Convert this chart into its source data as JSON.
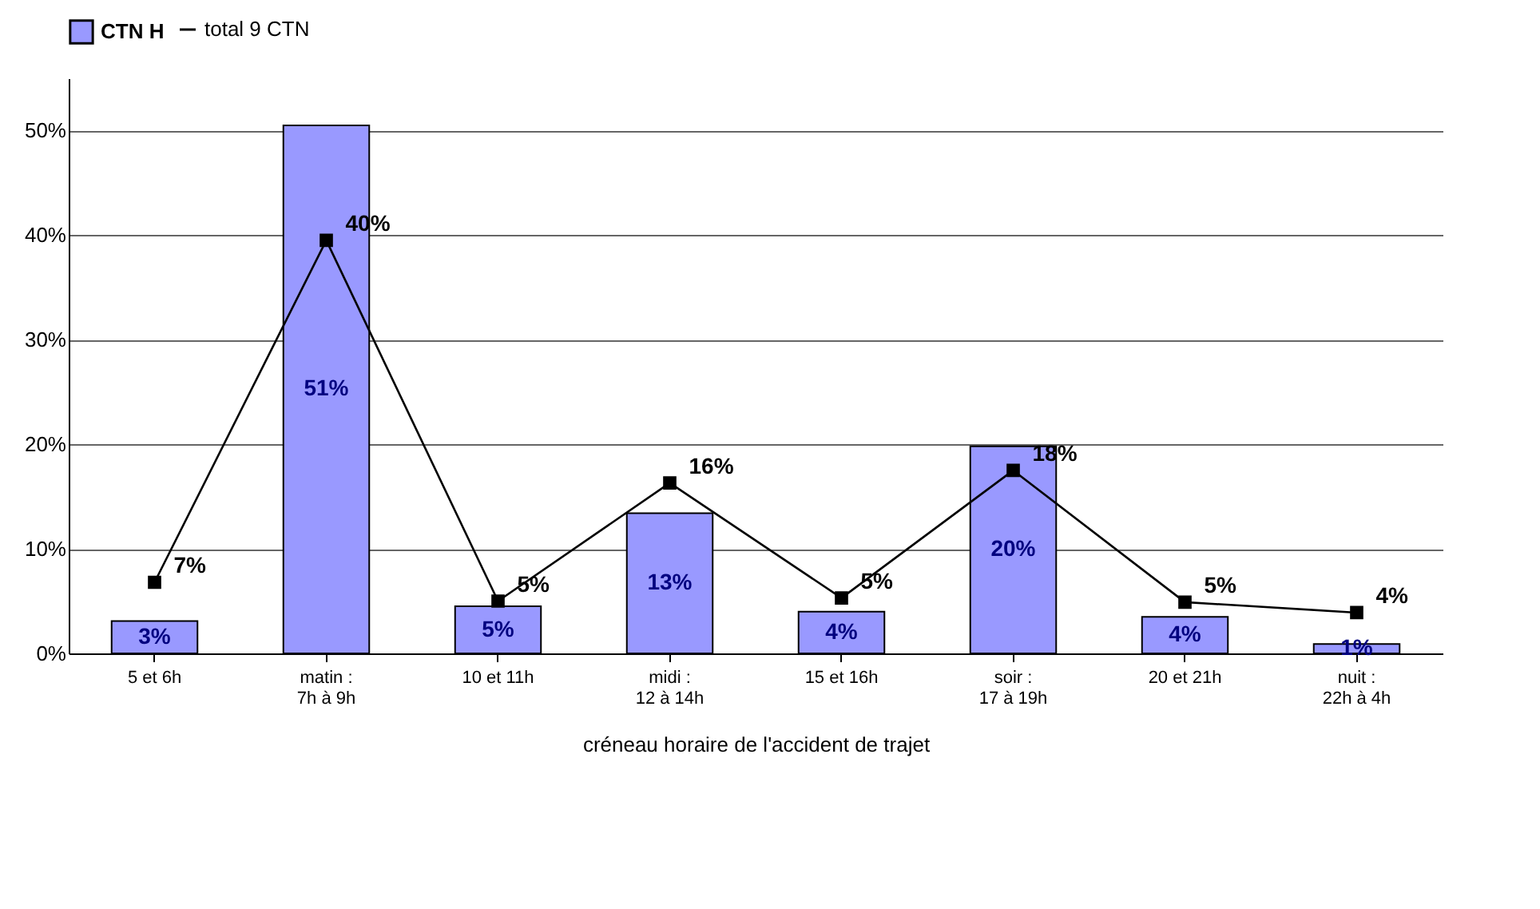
{
  "chart_data": {
    "type": "bar",
    "xlabel": "créneau horaire de l'accident de trajet",
    "categories": [
      "5 et 6h",
      "matin :\n7h à 9h",
      "10 et 11h",
      "midi :\n12 à 14h",
      "15 et 16h",
      "soir :\n17 à 19h",
      "20 et 21h",
      "nuit :\n22h à 4h"
    ],
    "series": [
      {
        "name": "CTN H",
        "color": "#9999ff",
        "values": [
          3.1,
          50.5,
          4.5,
          13.4,
          4.0,
          19.8,
          3.5,
          0.9
        ],
        "value_labels": [
          "3%",
          "51%",
          "5%",
          "13%",
          "4%",
          "20%",
          "4%",
          "1%"
        ]
      },
      {
        "name": "total 9 CTN",
        "type": "line",
        "color": "#000000",
        "values": [
          6.8,
          39.5,
          5.0,
          16.3,
          5.3,
          17.5,
          4.9,
          3.9
        ],
        "value_labels": [
          "7%",
          "40%",
          "5%",
          "16%",
          "5%",
          "18%",
          "5%",
          "4%"
        ]
      }
    ],
    "ylim": [
      0,
      55
    ],
    "yticks": [
      {
        "value": 0,
        "label": "0%"
      },
      {
        "value": 10,
        "label": "10%"
      },
      {
        "value": 20,
        "label": "20%"
      },
      {
        "value": 30,
        "label": "30%"
      },
      {
        "value": 40,
        "label": "40%"
      },
      {
        "value": 50,
        "label": "50%"
      }
    ],
    "grid": "y",
    "legend": "top left",
    "marker": "square",
    "line_style": "solid"
  }
}
